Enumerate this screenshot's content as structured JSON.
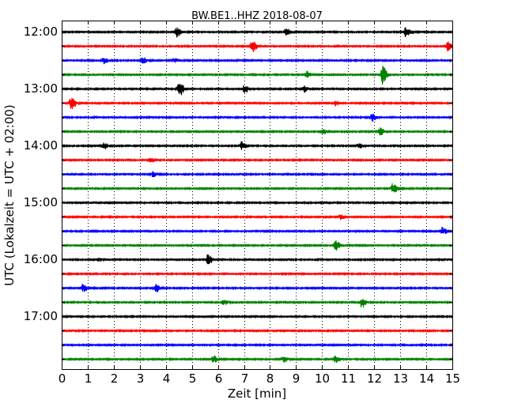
{
  "chart_data": {
    "type": "line",
    "title": "BW.BE1..HHZ 2018-08-07",
    "xlabel": "Zeit  [min]",
    "ylabel": "UTC (Lokalzeit = UTC + 02:00)",
    "xlim": [
      0,
      15
    ],
    "x_ticks": [
      "0",
      "1",
      "2",
      "3",
      "4",
      "5",
      "6",
      "7",
      "8",
      "9",
      "10",
      "11",
      "12",
      "13",
      "14",
      "15"
    ],
    "y_tick_labels": [
      "12:00",
      "13:00",
      "14:00",
      "15:00",
      "16:00",
      "17:00"
    ],
    "grid": "vertical dotted",
    "row_interval_minutes": 15,
    "color_cycle": [
      "#000000",
      "#ff0000",
      "#0000ff",
      "#008000"
    ],
    "traces": [
      {
        "start": "12:00",
        "events": [
          {
            "t": 4.4,
            "a": 6
          },
          {
            "t": 8.6,
            "a": 5
          },
          {
            "t": 13.2,
            "a": 7
          }
        ]
      },
      {
        "start": "12:15",
        "events": [
          {
            "t": 7.3,
            "a": 9
          },
          {
            "t": 14.8,
            "a": 6
          }
        ]
      },
      {
        "start": "12:30",
        "events": [
          {
            "t": 1.6,
            "a": 4
          },
          {
            "t": 3.1,
            "a": 4
          },
          {
            "t": 4.3,
            "a": 3
          }
        ]
      },
      {
        "start": "12:45",
        "events": [
          {
            "t": 9.4,
            "a": 4
          },
          {
            "t": 12.3,
            "a": 13
          }
        ]
      },
      {
        "start": "13:00",
        "events": [
          {
            "t": 4.5,
            "a": 10
          },
          {
            "t": 7.0,
            "a": 5
          },
          {
            "t": 9.3,
            "a": 4
          }
        ]
      },
      {
        "start": "13:15",
        "events": [
          {
            "t": 0.35,
            "a": 9
          },
          {
            "t": 10.5,
            "a": 3
          }
        ]
      },
      {
        "start": "13:30",
        "events": [
          {
            "t": 11.9,
            "a": 5
          }
        ]
      },
      {
        "start": "13:45",
        "events": [
          {
            "t": 10.0,
            "a": 3
          },
          {
            "t": 12.2,
            "a": 5
          }
        ]
      },
      {
        "start": "14:00",
        "events": [
          {
            "t": 1.6,
            "a": 4
          },
          {
            "t": 6.9,
            "a": 5
          },
          {
            "t": 11.4,
            "a": 3
          }
        ]
      },
      {
        "start": "14:15",
        "events": [
          {
            "t": 3.4,
            "a": 3
          }
        ]
      },
      {
        "start": "14:30",
        "events": [
          {
            "t": 3.5,
            "a": 4
          }
        ]
      },
      {
        "start": "14:45",
        "events": [
          {
            "t": 12.7,
            "a": 7
          }
        ]
      },
      {
        "start": "15:00",
        "events": []
      },
      {
        "start": "15:15",
        "events": [
          {
            "t": 10.7,
            "a": 3
          }
        ]
      },
      {
        "start": "15:30",
        "events": [
          {
            "t": 14.6,
            "a": 5
          }
        ]
      },
      {
        "start": "15:45",
        "events": [
          {
            "t": 10.5,
            "a": 7
          }
        ]
      },
      {
        "start": "16:00",
        "events": [
          {
            "t": 5.6,
            "a": 7
          },
          {
            "t": 1.4,
            "a": 2
          }
        ]
      },
      {
        "start": "16:15",
        "events": []
      },
      {
        "start": "16:30",
        "events": [
          {
            "t": 0.8,
            "a": 5
          },
          {
            "t": 3.6,
            "a": 5
          }
        ]
      },
      {
        "start": "16:45",
        "events": [
          {
            "t": 6.2,
            "a": 3
          },
          {
            "t": 11.5,
            "a": 7
          }
        ]
      },
      {
        "start": "17:00",
        "events": []
      },
      {
        "start": "17:15",
        "events": []
      },
      {
        "start": "17:30",
        "events": []
      },
      {
        "start": "17:45",
        "events": [
          {
            "t": 5.8,
            "a": 5
          },
          {
            "t": 8.5,
            "a": 4
          },
          {
            "t": 10.5,
            "a": 4
          }
        ]
      }
    ]
  }
}
